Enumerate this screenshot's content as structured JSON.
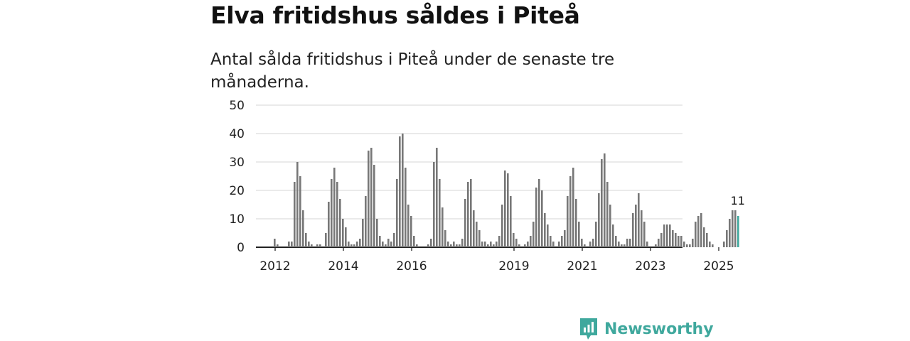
{
  "title": "Elva fritidshus såldes i Piteå",
  "subtitle": "Antal sålda fritidshus i Piteå under de senaste tre månaderna.",
  "brand": {
    "name": "Newsworthy",
    "color": "#3fa89d",
    "icon": "newsworthy-logo-icon"
  },
  "colors": {
    "bar": "#777777",
    "highlight": "#3fa89d",
    "grid": "#dddddd",
    "axis": "#222222"
  },
  "chart_data": {
    "type": "bar",
    "x_unit": "month",
    "x_start": "2012-01",
    "ylim": [
      0,
      50
    ],
    "yticks": [
      0,
      10,
      20,
      30,
      40,
      50
    ],
    "xticks": [
      "2012",
      "2014",
      "2016",
      "2019",
      "2021",
      "2023",
      "2025"
    ],
    "grid": true,
    "highlight_last": true,
    "data_label": "11",
    "values": [
      0,
      0,
      0,
      0,
      3,
      1,
      0,
      0,
      0,
      2,
      2,
      23,
      30,
      25,
      13,
      5,
      2,
      1,
      0,
      1,
      1,
      0,
      5,
      16,
      24,
      28,
      23,
      17,
      10,
      7,
      2,
      1,
      1,
      2,
      3,
      10,
      18,
      34,
      35,
      29,
      10,
      4,
      2,
      1,
      3,
      2,
      5,
      24,
      39,
      40,
      28,
      15,
      11,
      4,
      1,
      0,
      0,
      0,
      1,
      3,
      30,
      35,
      24,
      14,
      6,
      2,
      1,
      2,
      1,
      1,
      3,
      17,
      23,
      24,
      13,
      9,
      6,
      2,
      2,
      1,
      2,
      1,
      2,
      4,
      15,
      27,
      26,
      18,
      5,
      3,
      1,
      0,
      1,
      2,
      4,
      9,
      21,
      24,
      20,
      12,
      8,
      4,
      2,
      0,
      2,
      4,
      6,
      18,
      25,
      28,
      17,
      9,
      3,
      1,
      0,
      2,
      3,
      9,
      19,
      31,
      33,
      23,
      15,
      8,
      4,
      2,
      1,
      1,
      3,
      3,
      12,
      15,
      19,
      13,
      9,
      2,
      0,
      0,
      1,
      3,
      5,
      8,
      8,
      8,
      6,
      5,
      4,
      4,
      2,
      1,
      1,
      3,
      9,
      11,
      12,
      7,
      5,
      2,
      1,
      0,
      0,
      0,
      2,
      6,
      10,
      13,
      13,
      11
    ]
  }
}
